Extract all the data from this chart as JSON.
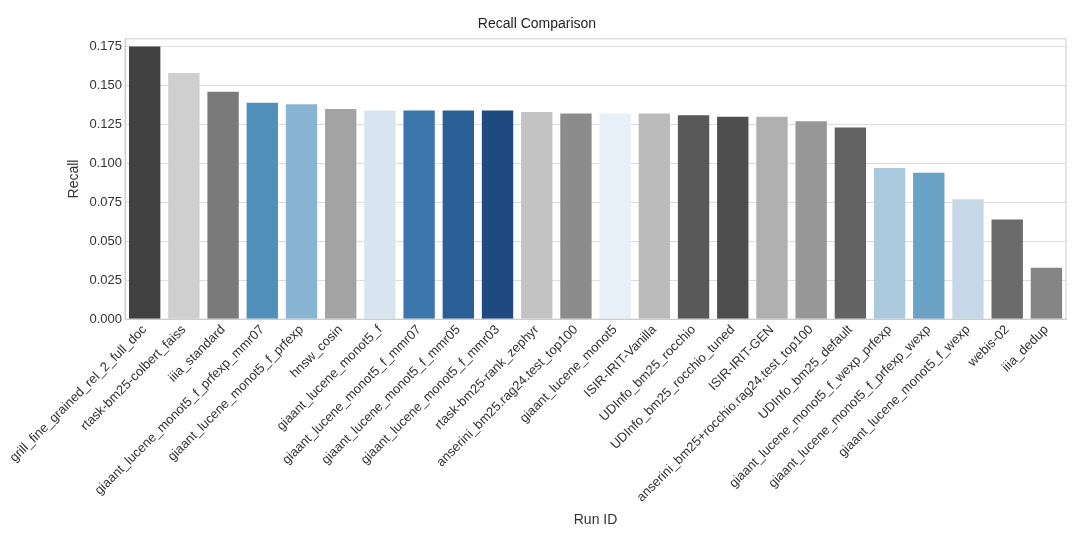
{
  "chart_data": {
    "type": "bar",
    "title": "Recall Comparison",
    "xlabel": "Run ID",
    "ylabel": "Recall",
    "categories": [
      "grill_fine_grained_rel_2_full_doc",
      "rtask-bm25-colbert_faiss",
      "iiia_standard",
      "giaant_lucene_monot5_f_prfexp_mmr07",
      "giaant_lucene_monot5_f_prfexp",
      "hnsw_cosin",
      "giaant_lucene_monot5_f",
      "giaant_lucene_monot5_f_mmr07",
      "giaant_lucene_monot5_f_mmr05",
      "giaant_lucene_monot5_f_mmr03",
      "rtask-bm25-rank_zephyr",
      "anserini_bm25.rag24.test_top100",
      "giaant_lucene_monot5",
      "ISIR-IRIT-Vanilla",
      "UDInfo_bm25_rocchio",
      "UDInfo_bm25_rocchio_tuned",
      "ISIR-IRIT-GEN",
      "anserini_bm25+rocchio.rag24.test_top100",
      "UDInfo_bm25_default",
      "giaant_lucene_monot5_f_wexp_prfexp",
      "giaant_lucene_monot5_f_prfexp_wexp",
      "giaant_lucene_monot5_f_wexp",
      "webis-02",
      "iiia_dedup"
    ],
    "values": [
      0.175,
      0.158,
      0.146,
      0.139,
      0.138,
      0.135,
      0.134,
      0.134,
      0.134,
      0.134,
      0.133,
      0.132,
      0.132,
      0.132,
      0.131,
      0.13,
      0.13,
      0.127,
      0.123,
      0.097,
      0.094,
      0.077,
      0.064,
      0.033
    ],
    "colors": [
      "#414141",
      "#cfcfcf",
      "#7a7a7a",
      "#5190bb",
      "#89b5d2",
      "#a3a3a3",
      "#d8e4f0",
      "#3b77aa",
      "#2a5f96",
      "#1e4a7f",
      "#c3c3c3",
      "#8c8c8c",
      "#e7eff8",
      "#bbbbbb",
      "#595959",
      "#4e4e4e",
      "#b0b0b0",
      "#979797",
      "#636363",
      "#abc9dc",
      "#6aa2c6",
      "#c6d8e7",
      "#6b6b6b",
      "#858585"
    ],
    "ylim": [
      0,
      0.18
    ],
    "yticks": [
      {
        "value": 0,
        "label": "0.000"
      },
      0.025,
      {
        "value": 0.05,
        "label": "0.050"
      },
      0.075,
      {
        "value": 0.1,
        "label": "0.100"
      },
      0.125,
      {
        "value": 0.15,
        "label": "0.150"
      },
      0.175
    ],
    "grid": "y"
  }
}
